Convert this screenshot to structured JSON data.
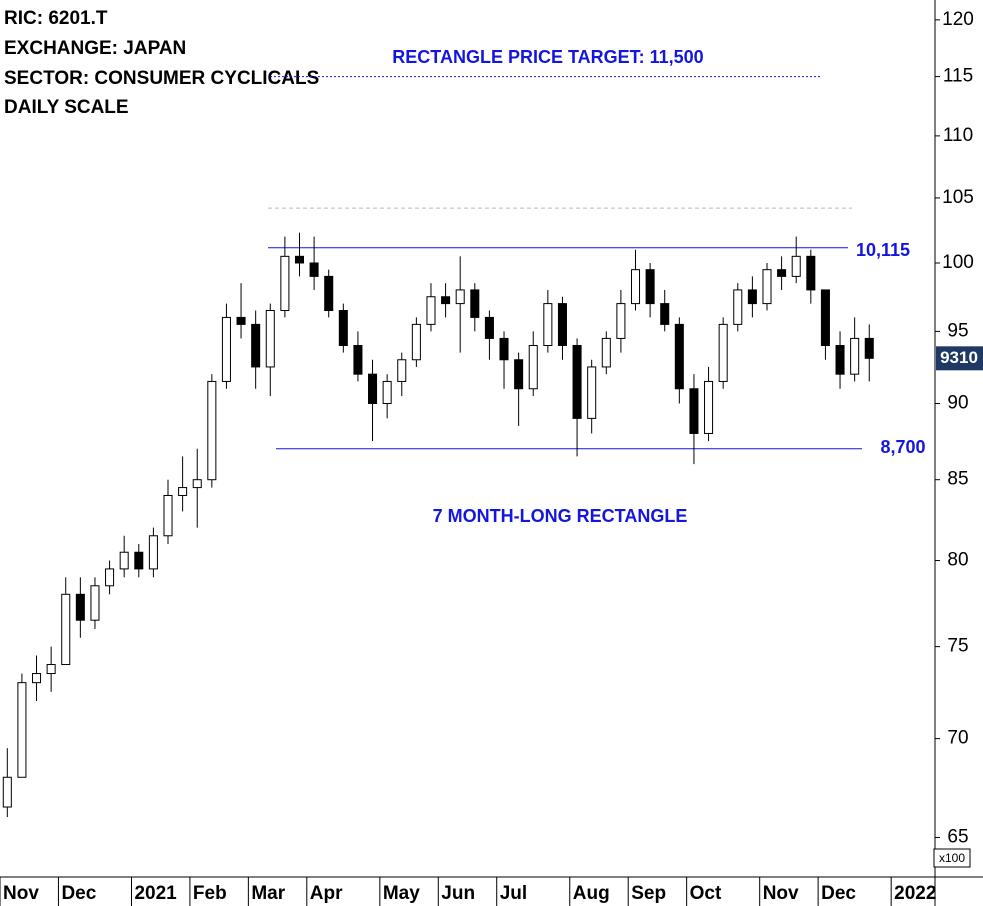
{
  "chart_data": {
    "type": "candlestick",
    "header": [
      "RIC: 6201.T",
      "EXCHANGE: JAPAN",
      "SECTOR: CONSUMER CYCLICALS",
      "DAILY SCALE"
    ],
    "annotation": "7 MONTH-LONG RECTANGLE",
    "y_unit": "x100",
    "log_scale": true,
    "categories": [
      "Nov",
      null,
      null,
      null,
      "Dec",
      null,
      null,
      null,
      null,
      "2021",
      null,
      null,
      null,
      "Feb",
      null,
      null,
      null,
      "Mar",
      null,
      null,
      null,
      "Apr",
      null,
      null,
      null,
      null,
      "May",
      null,
      null,
      null,
      "Jun",
      null,
      null,
      null,
      "Jul",
      null,
      null,
      null,
      null,
      "Aug",
      null,
      null,
      null,
      "Sep",
      null,
      null,
      null,
      "Oct",
      null,
      null,
      null,
      null,
      "Nov",
      null,
      null,
      null,
      "Dec",
      null,
      null,
      null,
      null,
      "2022",
      null,
      null
    ],
    "open": [
      66.5,
      68,
      73,
      73.5,
      74,
      78,
      76.5,
      78.5,
      79.5,
      80.5,
      79.5,
      81.5,
      84,
      84.5,
      85,
      91.5,
      96,
      95.5,
      92.5,
      96.5,
      100.5,
      100,
      99,
      96.5,
      94,
      92,
      90,
      91.5,
      93,
      95.5,
      97.5,
      97,
      98,
      96,
      94.5,
      93,
      91,
      94,
      97,
      94,
      89,
      92.5,
      94.5,
      97,
      99.5,
      97,
      95.5,
      91,
      88,
      91.5,
      95.5,
      98,
      97,
      99.5,
      99,
      100.5,
      98,
      94,
      92,
      94.5,
      null,
      null,
      null,
      null
    ],
    "high": [
      69.5,
      73.5,
      74.5,
      75,
      79,
      79,
      79,
      80,
      81.5,
      81,
      82,
      85,
      86.5,
      87,
      92,
      97,
      98.5,
      96.5,
      97,
      102,
      102.3,
      102,
      99.5,
      97,
      95,
      93,
      92,
      93.5,
      96,
      98.5,
      98.5,
      100.5,
      98.5,
      96.5,
      95,
      93.5,
      95,
      98,
      97.5,
      94.5,
      93,
      95,
      98,
      101,
      100,
      98,
      96,
      92,
      92.5,
      96,
      98.5,
      99,
      100,
      100.5,
      102,
      101,
      98,
      95,
      96,
      95.5,
      null,
      null,
      null,
      null
    ],
    "low": [
      66,
      68,
      72,
      72.5,
      74,
      75.5,
      76,
      78,
      79,
      79,
      79,
      81,
      83,
      82,
      84.5,
      91,
      94.5,
      91,
      90.5,
      96,
      99,
      98,
      96,
      93.5,
      91.5,
      87.5,
      89,
      90.5,
      92.5,
      95,
      96,
      93.5,
      95,
      93,
      91,
      88.5,
      90.5,
      93.5,
      93,
      86.5,
      88,
      92,
      93.5,
      96.5,
      96,
      95,
      90,
      86,
      87.5,
      91,
      95,
      96,
      96.5,
      98,
      98.5,
      97,
      93,
      91,
      91.5,
      91.5,
      null,
      null,
      null,
      null
    ],
    "close": [
      68,
      73,
      73.5,
      74,
      78,
      76.5,
      78.5,
      79.5,
      80.5,
      79.5,
      81.5,
      84,
      84.5,
      85,
      91.5,
      96,
      95.5,
      92.5,
      96.5,
      100.5,
      100,
      99,
      96.5,
      94,
      92,
      90,
      91.5,
      93,
      95.5,
      97.5,
      97,
      98,
      96,
      94.5,
      93,
      91,
      94,
      97,
      94,
      89,
      92.5,
      94.5,
      97,
      99.5,
      97,
      95.5,
      91,
      88,
      91.5,
      95.5,
      98,
      97,
      99.5,
      99,
      100.5,
      98,
      94,
      92,
      94.5,
      93.1,
      null,
      null,
      null,
      null
    ],
    "ylim": [
      63.1,
      121.8
    ],
    "yticks": [
      65,
      70,
      75,
      80,
      85,
      90,
      95,
      100,
      105,
      110,
      115,
      120
    ],
    "price_label": {
      "value": 93.1,
      "label": "9310"
    },
    "lines": [
      {
        "value": 115,
        "label": "RECTANGLE PRICE TARGET: 11,500",
        "style": "dotted",
        "color": "#1515e0"
      },
      {
        "value": 104.2,
        "style": "dashed",
        "color": "#bbbbbb"
      },
      {
        "value": 101.15,
        "label": "10,115",
        "style": "solid",
        "color": "#1515e0"
      },
      {
        "value": 87,
        "label": "8,700",
        "style": "solid",
        "color": "#1515e0"
      }
    ]
  }
}
